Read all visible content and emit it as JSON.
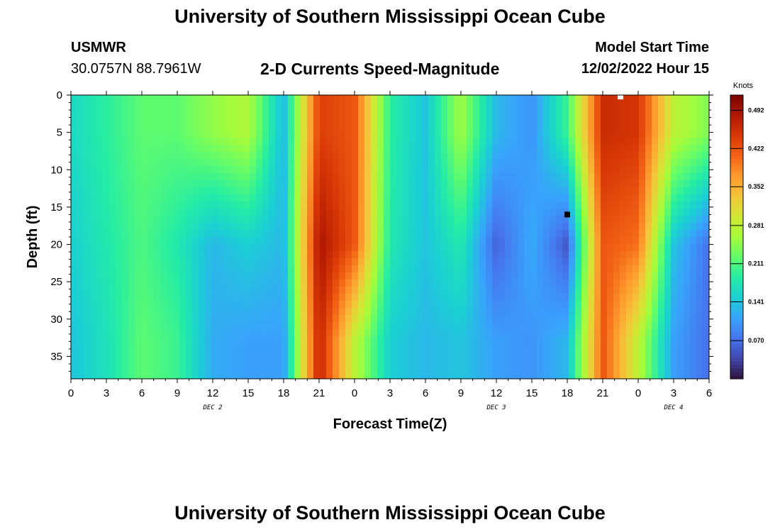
{
  "page": {
    "title": "University of Southern Mississippi Ocean Cube",
    "station": "USMWR",
    "coords": "30.0757N  88.7961W",
    "subtitle": "2-D Currents Speed-Magnitude",
    "start_label": "Model Start Time",
    "start_value": "12/02/2022 Hour 15",
    "bottom_title": "University of Southern Mississippi Ocean Cube"
  },
  "chart_data": {
    "type": "heatmap",
    "title": "2-D Currents Speed-Magnitude",
    "xlabel": "Forecast Time(Z)",
    "ylabel": "Depth (ft)",
    "x_unit": "hours since 2022-12-02 00Z",
    "xlim": [
      0,
      54
    ],
    "ylim": [
      0,
      38
    ],
    "y_inverted": true,
    "x_ticks": [
      0,
      3,
      6,
      9,
      12,
      15,
      18,
      21,
      24,
      27,
      30,
      33,
      36,
      39,
      42,
      45,
      48,
      51,
      54
    ],
    "x_tick_labels": [
      "0",
      "3",
      "6",
      "9",
      "12",
      "15",
      "18",
      "21",
      "0",
      "3",
      "6",
      "9",
      "12",
      "15",
      "18",
      "21",
      "0",
      "3",
      "6"
    ],
    "day_labels": [
      {
        "x": 12,
        "text": "DEC 2"
      },
      {
        "x": 36,
        "text": "DEC 3"
      },
      {
        "x": 51,
        "text": "DEC 4"
      }
    ],
    "y_ticks": [
      0,
      5,
      10,
      15,
      20,
      25,
      30,
      35
    ],
    "y_tick_labels": [
      "0",
      "5",
      "10",
      "15",
      "20",
      "25",
      "30",
      "35"
    ],
    "colorbar": {
      "title": "Knots",
      "min": 0.0,
      "max": 0.52,
      "ticks": [
        0.07,
        0.141,
        0.211,
        0.281,
        0.352,
        0.422,
        0.492
      ],
      "tick_labels": [
        "0.070",
        "0.141",
        "0.211",
        "0.281",
        "0.352",
        "0.422",
        "0.492"
      ],
      "colormap": [
        "#30123b",
        "#4145ab",
        "#4675ed",
        "#39a2fc",
        "#1bcfd4",
        "#24eca6",
        "#61fc6c",
        "#a4fc3b",
        "#d1e834",
        "#f3c63a",
        "#fe9b2d",
        "#f36315",
        "#d93806",
        "#b11901",
        "#7a0402"
      ]
    },
    "speed_at_depth_5ft_knots": {
      "x": [
        0,
        3,
        6,
        9,
        12,
        15,
        18,
        21,
        24,
        27,
        30,
        33,
        36,
        39,
        42,
        45,
        48,
        51,
        54
      ],
      "values": [
        0.16,
        0.19,
        0.22,
        0.22,
        0.25,
        0.27,
        0.13,
        0.44,
        0.42,
        0.19,
        0.14,
        0.26,
        0.13,
        0.1,
        0.2,
        0.46,
        0.45,
        0.28,
        0.24
      ]
    },
    "speed_at_depth_20ft_knots": {
      "x": [
        0,
        3,
        6,
        9,
        12,
        15,
        18,
        21,
        24,
        27,
        30,
        33,
        36,
        39,
        42,
        45,
        48,
        51,
        54
      ],
      "values": [
        0.15,
        0.18,
        0.21,
        0.18,
        0.13,
        0.15,
        0.13,
        0.49,
        0.42,
        0.18,
        0.14,
        0.18,
        0.06,
        0.12,
        0.05,
        0.42,
        0.4,
        0.14,
        0.07
      ]
    },
    "speed_at_depth_33ft_knots": {
      "x": [
        0,
        3,
        6,
        9,
        12,
        15,
        18,
        21,
        24,
        27,
        30,
        33,
        36,
        39,
        42,
        45,
        48,
        51,
        54
      ],
      "values": [
        0.14,
        0.17,
        0.22,
        0.2,
        0.12,
        0.11,
        0.11,
        0.47,
        0.28,
        0.15,
        0.13,
        0.14,
        0.11,
        0.1,
        0.13,
        0.42,
        0.28,
        0.11,
        0.07
      ]
    },
    "markers": [
      {
        "x": 46.5,
        "depth": 0.2,
        "color": "#ffffff"
      },
      {
        "x": 42.0,
        "depth": 16.0,
        "color": "#000000"
      }
    ]
  }
}
